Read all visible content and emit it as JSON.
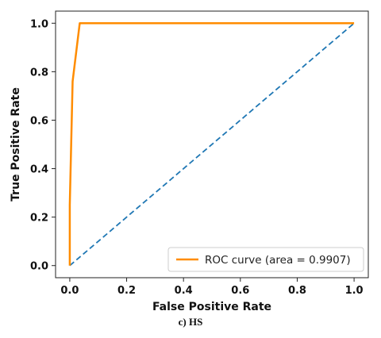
{
  "caption": "c) HS",
  "chart_data": {
    "type": "line",
    "title": "",
    "xlabel": "False Positive Rate",
    "ylabel": "True Positive Rate",
    "xlim": [
      -0.05,
      1.05
    ],
    "ylim": [
      -0.05,
      1.05
    ],
    "xticks": [
      "0.0",
      "0.2",
      "0.4",
      "0.6",
      "0.8",
      "1.0"
    ],
    "yticks": [
      "0.0",
      "0.2",
      "0.4",
      "0.6",
      "0.8",
      "1.0"
    ],
    "grid": false,
    "legend_position": "lower-right",
    "series": [
      {
        "name": "ROC curve (area = 0.9907)",
        "color": "#ff8c00",
        "style": "solid",
        "x": [
          0.0,
          0.0,
          0.01,
          0.035,
          1.0
        ],
        "y": [
          0.0,
          0.25,
          0.76,
          1.0,
          1.0
        ]
      },
      {
        "color": "#1f77b4",
        "style": "dashed",
        "x": [
          0.0,
          1.0
        ],
        "y": [
          0.0,
          1.0
        ]
      }
    ]
  }
}
